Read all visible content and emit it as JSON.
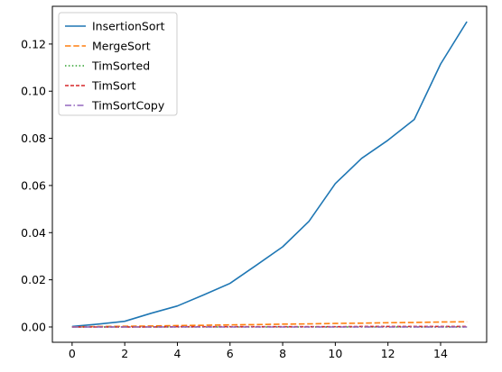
{
  "chart_data": {
    "type": "line",
    "x": [
      0,
      1,
      2,
      3,
      4,
      5,
      6,
      7,
      8,
      9,
      10,
      11,
      12,
      13,
      14,
      15
    ],
    "xlim": [
      -0.75,
      15.75
    ],
    "ylim": [
      -0.0065,
      0.136
    ],
    "xticks": [
      0,
      2,
      4,
      6,
      8,
      10,
      12,
      14
    ],
    "yticks": [
      0.0,
      0.02,
      0.04,
      0.06,
      0.08,
      0.1,
      0.12
    ],
    "xtick_labels": [
      "0",
      "2",
      "4",
      "6",
      "8",
      "10",
      "12",
      "14"
    ],
    "ytick_labels": [
      "0.00",
      "0.02",
      "0.04",
      "0.06",
      "0.08",
      "0.10",
      "0.12"
    ],
    "grid": false,
    "legend_position": "upper-left",
    "series": [
      {
        "name": "InsertionSort",
        "color": "#1f77b4",
        "style": "solid",
        "values": [
          0.0002,
          0.0012,
          0.0024,
          0.0058,
          0.0089,
          0.0136,
          0.0185,
          0.0262,
          0.034,
          0.0448,
          0.0608,
          0.0715,
          0.0792,
          0.088,
          0.1115,
          0.1295
        ]
      },
      {
        "name": "MergeSort",
        "color": "#ff7f0e",
        "style": "dashed",
        "values": [
          0.0,
          0.0002,
          0.0003,
          0.0004,
          0.0006,
          0.0007,
          0.0009,
          0.001,
          0.0012,
          0.0013,
          0.0015,
          0.0016,
          0.0018,
          0.0019,
          0.0021,
          0.0022
        ]
      },
      {
        "name": "TimSorted",
        "color": "#2ca02c",
        "style": "dotted",
        "values": [
          0.0,
          0.0,
          0.0,
          0.0,
          0.0,
          0.0,
          0.0,
          0.0,
          0.0,
          0.0,
          0.0,
          0.0,
          0.0,
          0.0,
          0.0,
          0.0
        ]
      },
      {
        "name": "TimSort",
        "color": "#d62728",
        "style": "densedash",
        "values": [
          0.0,
          0.0,
          0.0,
          0.0,
          0.0001,
          0.0001,
          0.0001,
          0.0001,
          0.0001,
          0.0001,
          0.0001,
          0.0002,
          0.0002,
          0.0002,
          0.0002,
          0.0002
        ]
      },
      {
        "name": "TimSortCopy",
        "color": "#9467bd",
        "style": "dashdot",
        "values": [
          0.0,
          0.0,
          0.0,
          0.0,
          0.0,
          0.0,
          0.0,
          0.0,
          0.0,
          0.0,
          0.0,
          0.0,
          0.0,
          0.0,
          0.0,
          0.0
        ]
      }
    ]
  }
}
